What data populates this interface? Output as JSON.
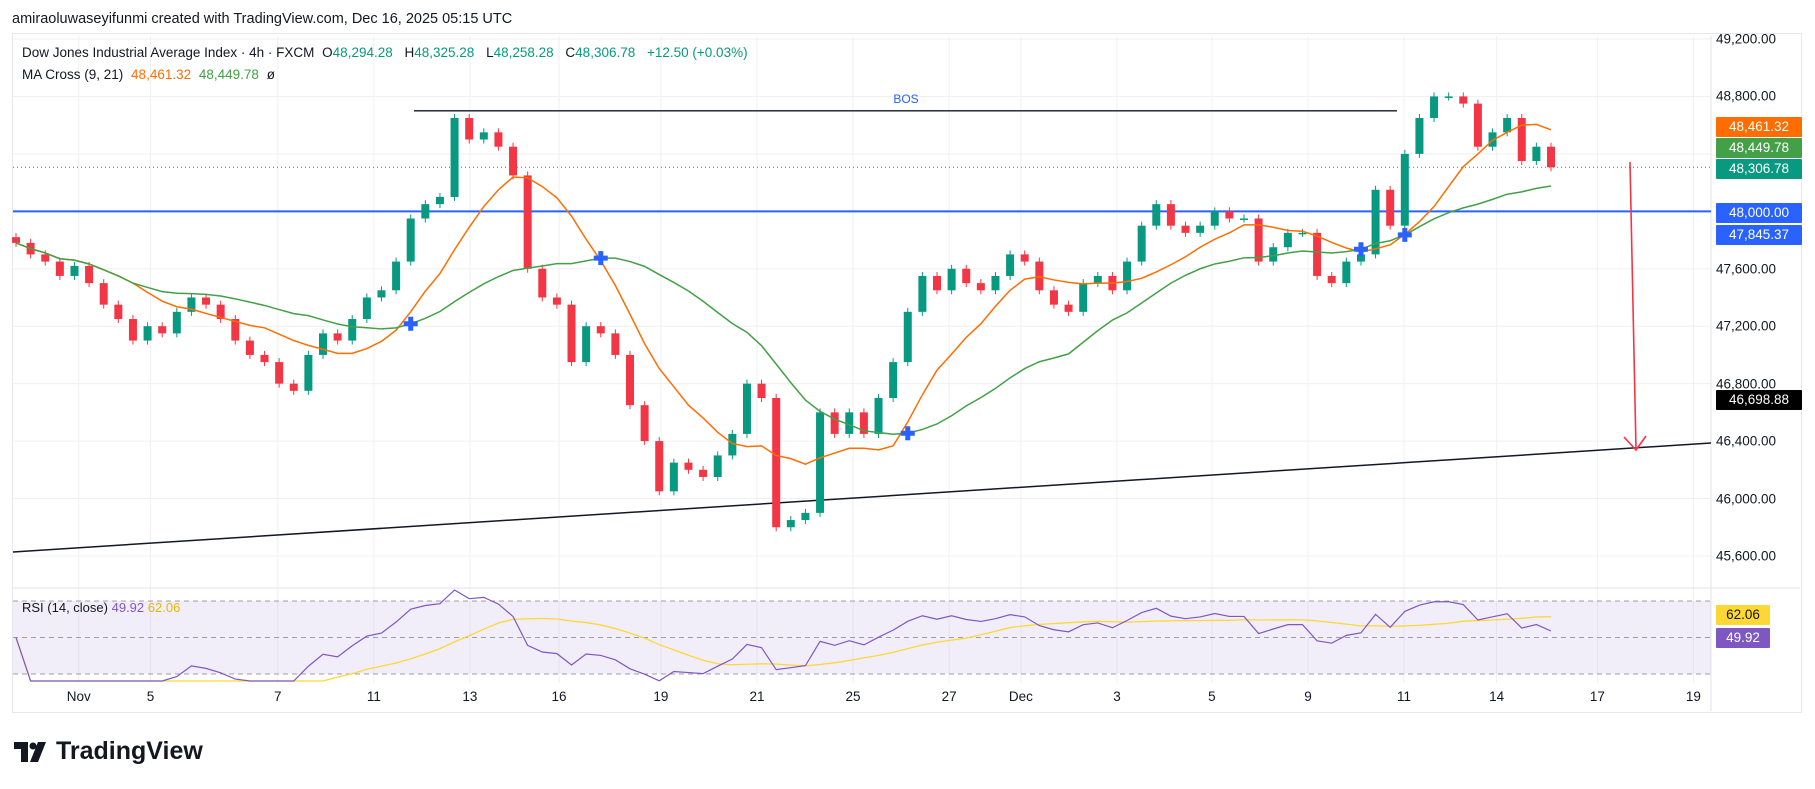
{
  "attribution": "amiraoluwaseyifunmi created with TradingView.com, Dec 16, 2025 05:15 UTC",
  "legend": {
    "symbol": "Dow Jones Industrial Average Index · 4h · FXCM",
    "open_label": "O",
    "open": "48,294.28",
    "high_label": "H",
    "high": "48,325.28",
    "low_label": "L",
    "low": "48,258.28",
    "close_label": "C",
    "close": "48,306.78",
    "change": "+12.50 (+0.03%)",
    "ma_label": "MA Cross (9, 21)",
    "ma_fast": "48,461.32",
    "ma_slow": "48,449.78",
    "ma_extra": "ø"
  },
  "rsi_legend": {
    "label": "RSI (14, close)",
    "rsi": "49.92",
    "rsi_ma": "62.06"
  },
  "annotations": {
    "bos_label": "BOS",
    "bos_level": 48700,
    "support_level": 48000
  },
  "price_axis": [
    "49,200.00",
    "48,800.00",
    "47,600.00",
    "47,200.00",
    "46,800.00",
    "46,400.00",
    "46,000.00",
    "45,600.00"
  ],
  "price_tags": [
    {
      "value": "48,461.32",
      "color": "#ff6d00"
    },
    {
      "value": "48,449.78",
      "color": "#43a047"
    },
    {
      "value": "48,306.78",
      "color": "#089981"
    },
    {
      "value": "48,000.00",
      "color": "#2962ff"
    },
    {
      "value": "47,845.37",
      "color": "#2962ff"
    },
    {
      "value": "46,698.88",
      "color": "#000000"
    }
  ],
  "rsi_tags": [
    {
      "value": "62.06",
      "color": "#fdd835",
      "text": "#131722"
    },
    {
      "value": "49.92",
      "color": "#7e57c2",
      "text": "#ffffff"
    }
  ],
  "date_axis": [
    "Nov",
    "5",
    "7",
    "11",
    "13",
    "16",
    "19",
    "21",
    "25",
    "27",
    "Dec",
    "3",
    "5",
    "9",
    "11",
    "14",
    "17",
    "19"
  ],
  "colors": {
    "up": "#089981",
    "down": "#f23645",
    "ma_fast": "#ff6d00",
    "ma_slow": "#43a047",
    "support": "#2962ff",
    "rsi": "#7e57c2",
    "rsi_ma": "#fdd835",
    "arrow": "#f23645"
  },
  "chart_data": {
    "type": "candlestick",
    "timeframe": "4h",
    "ylim": [
      45400,
      49300
    ],
    "closes": [
      47780,
      47700,
      47650,
      47550,
      47620,
      47500,
      47350,
      47250,
      47100,
      47200,
      47150,
      47300,
      47400,
      47350,
      47250,
      47100,
      47000,
      46950,
      46800,
      46750,
      47000,
      47150,
      47100,
      47250,
      47400,
      47450,
      47650,
      47950,
      48050,
      48100,
      48650,
      48500,
      48550,
      48450,
      48250,
      47600,
      47400,
      47350,
      46950,
      47200,
      47150,
      47000,
      46650,
      46400,
      46050,
      46250,
      46200,
      46150,
      46300,
      46450,
      46800,
      46700,
      45800,
      45850,
      45900,
      46600,
      46450,
      46600,
      46450,
      46700,
      46950,
      47300,
      47550,
      47450,
      47600,
      47500,
      47450,
      47550,
      47700,
      47650,
      47450,
      47350,
      47300,
      47500,
      47550,
      47450,
      47650,
      47900,
      48050,
      47900,
      47850,
      47900,
      48000,
      47950,
      47950,
      47650,
      47750,
      47850,
      47850,
      47550,
      47500,
      47650,
      47700,
      48150,
      47900,
      48400,
      48650,
      48800,
      48800,
      48750,
      48450,
      48550,
      48650,
      48350,
      48450,
      48306.78
    ],
    "ma_periods": [
      9,
      21
    ],
    "rsi_period": 14,
    "rsi_levels": [
      70,
      50,
      30
    ]
  }
}
